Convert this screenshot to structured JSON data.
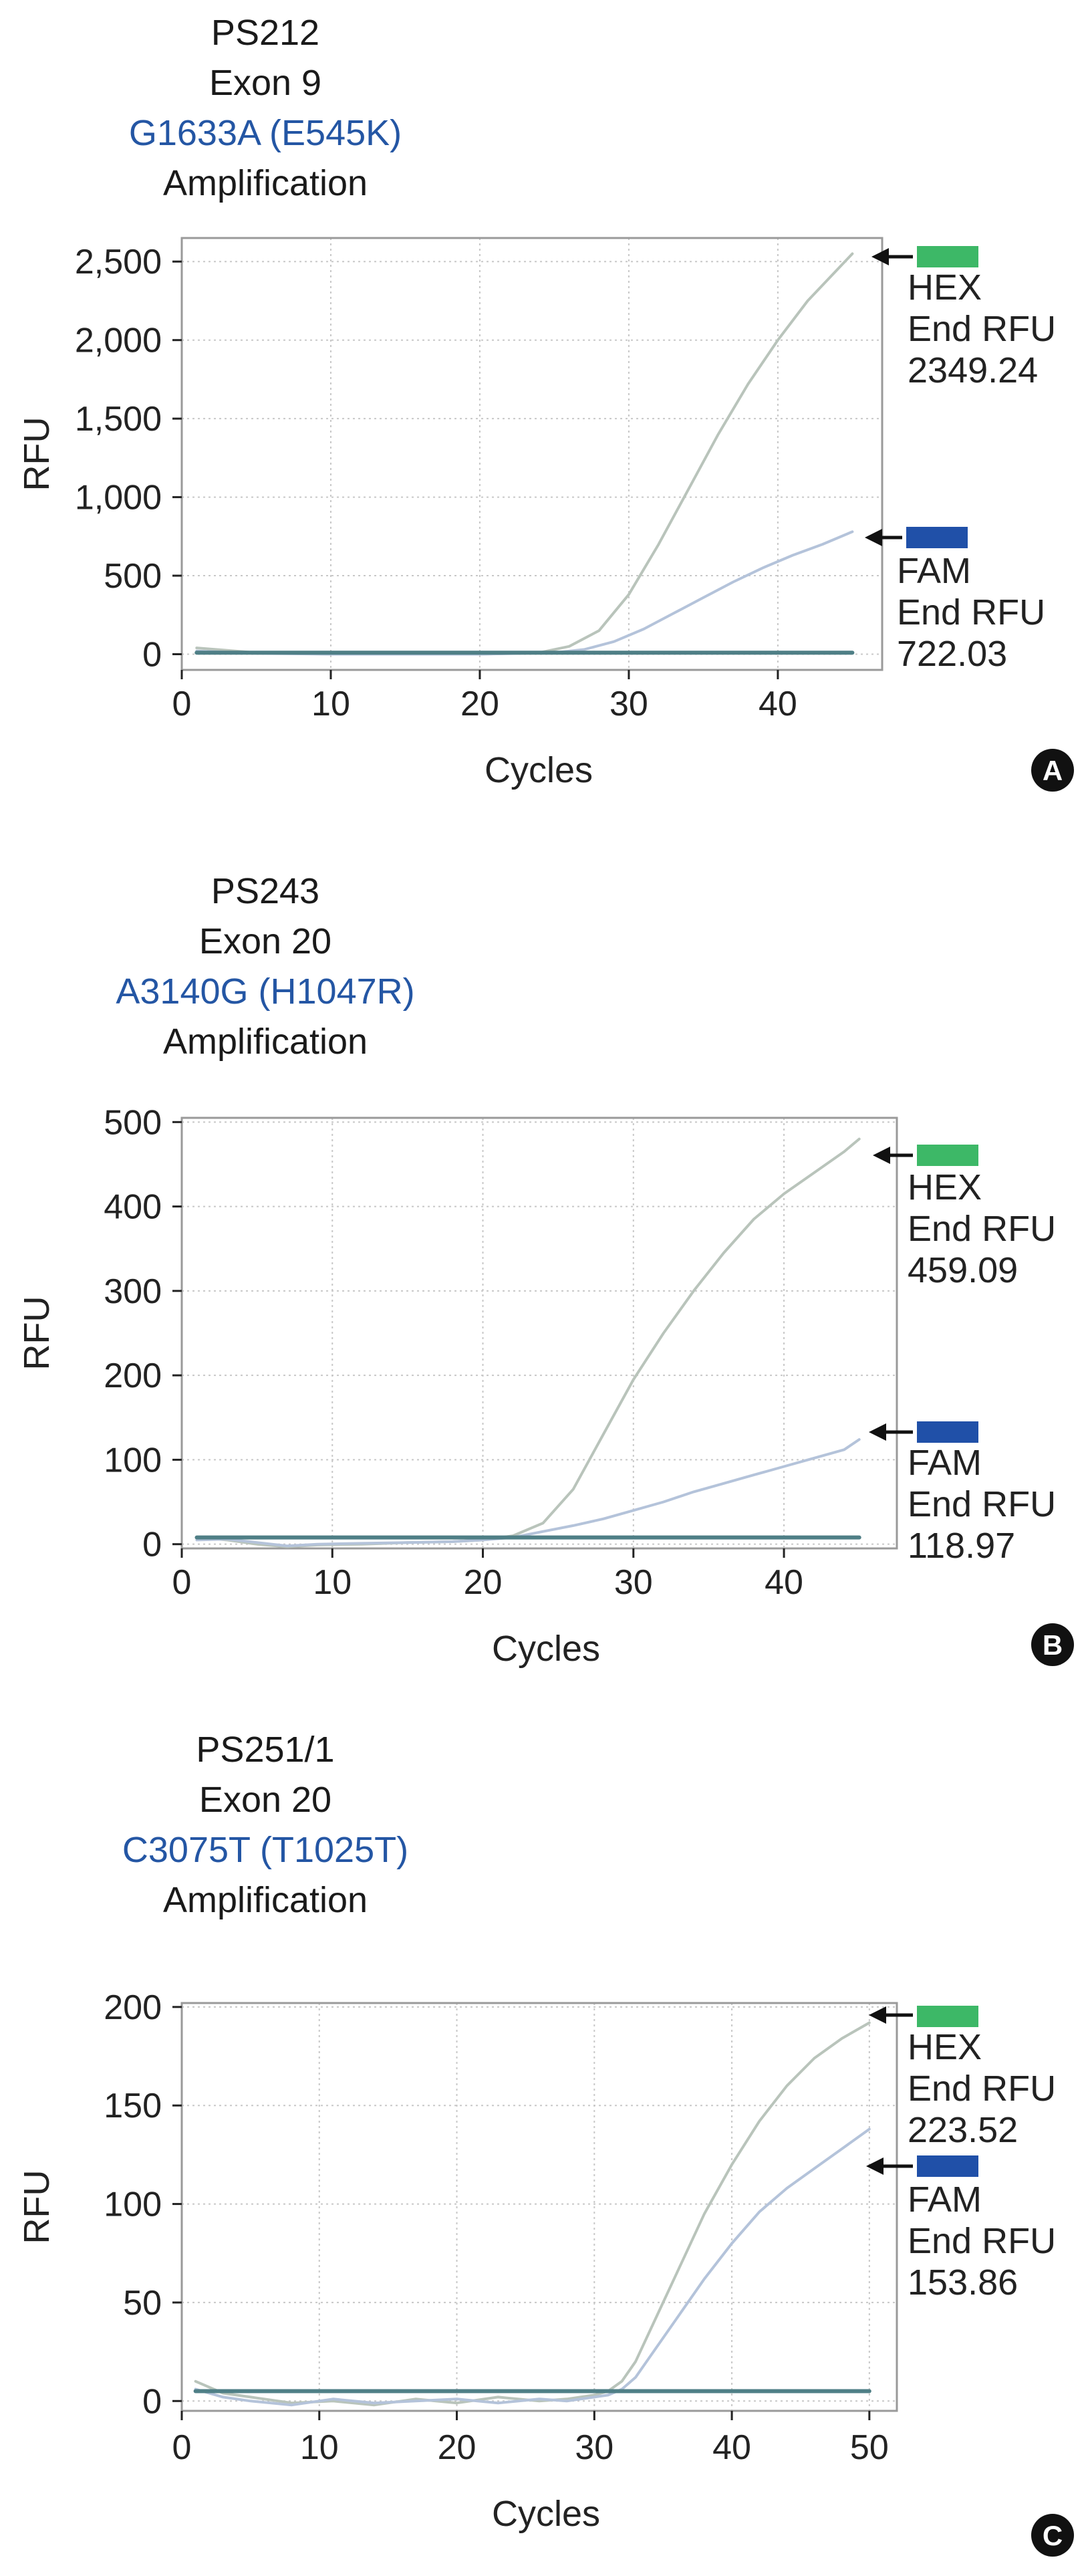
{
  "figure": {
    "colors": {
      "hex": "#3db867",
      "fam": "#2050a8",
      "axis": "#222222",
      "grid": "#c8c8c8",
      "curve_hex": "#b9c4bb",
      "curve_fam": "#b4c3da",
      "baseline": "#4f7f86",
      "arrow": "#111111",
      "mutation_text": "#2456a4"
    }
  },
  "chart_data": [
    {
      "type": "line",
      "panel_label": "A",
      "title_lines": [
        "PS212",
        "Exon 9",
        "G1633A (E545K)",
        "Amplification"
      ],
      "xlabel": "Cycles",
      "ylabel": "RFU",
      "xlim": [
        0,
        47
      ],
      "ylim": [
        -100,
        2650
      ],
      "xticks": [
        0,
        10,
        20,
        30,
        40
      ],
      "xtick_labels": [
        "0",
        "10",
        "20",
        "30",
        "40"
      ],
      "yticks": [
        0,
        500,
        1000,
        1500,
        2000,
        2500
      ],
      "ytick_labels": [
        "0",
        "500",
        "1,000",
        "1,500",
        "2,000",
        "2,500"
      ],
      "grid": true,
      "series": [
        {
          "name": "HEX",
          "end_rfu_label": "End RFU",
          "end_rfu": "2349.24",
          "x": [
            1,
            5,
            10,
            15,
            20,
            24,
            26,
            28,
            30,
            32,
            34,
            36,
            38,
            40,
            42,
            44,
            45
          ],
          "y": [
            40,
            10,
            0,
            0,
            0,
            10,
            50,
            150,
            380,
            700,
            1050,
            1400,
            1720,
            2000,
            2250,
            2450,
            2550
          ]
        },
        {
          "name": "FAM",
          "end_rfu_label": "End RFU",
          "end_rfu": "722.03",
          "x": [
            1,
            5,
            10,
            15,
            20,
            25,
            27,
            29,
            31,
            33,
            35,
            37,
            39,
            41,
            43,
            45
          ],
          "y": [
            20,
            5,
            0,
            0,
            0,
            10,
            30,
            80,
            160,
            260,
            360,
            460,
            550,
            630,
            700,
            780
          ]
        },
        {
          "name": "",
          "x": [
            1,
            45
          ],
          "y": [
            10,
            10
          ]
        }
      ]
    },
    {
      "type": "line",
      "panel_label": "B",
      "title_lines": [
        "PS243",
        "Exon 20",
        "A3140G (H1047R)",
        "Amplification"
      ],
      "xlabel": "Cycles",
      "ylabel": "RFU",
      "xlim": [
        0,
        47.5
      ],
      "ylim": [
        -5,
        505
      ],
      "xticks": [
        0,
        10,
        20,
        30,
        40
      ],
      "xtick_labels": [
        "0",
        "10",
        "20",
        "30",
        "40"
      ],
      "yticks": [
        0,
        100,
        200,
        300,
        400,
        500
      ],
      "ytick_labels": [
        "0",
        "100",
        "200",
        "300",
        "400",
        "500"
      ],
      "grid": true,
      "series": [
        {
          "name": "HEX",
          "end_rfu_label": "End RFU",
          "end_rfu": "459.09",
          "x": [
            1,
            3,
            5,
            7,
            9,
            12,
            15,
            18,
            20,
            22,
            24,
            26,
            28,
            30,
            32,
            34,
            36,
            38,
            40,
            42,
            44,
            45
          ],
          "y": [
            8,
            5,
            0,
            -3,
            -1,
            0,
            2,
            3,
            5,
            10,
            25,
            65,
            130,
            195,
            250,
            300,
            345,
            385,
            415,
            440,
            465,
            480
          ]
        },
        {
          "name": "FAM",
          "end_rfu_label": "End RFU",
          "end_rfu": "118.97",
          "x": [
            1,
            3,
            5,
            7,
            9,
            12,
            15,
            18,
            20,
            22,
            24,
            26,
            28,
            30,
            32,
            34,
            36,
            38,
            40,
            42,
            44,
            45
          ],
          "y": [
            5,
            6,
            2,
            -2,
            0,
            1,
            2,
            3,
            5,
            8,
            15,
            22,
            30,
            40,
            50,
            62,
            72,
            82,
            92,
            102,
            112,
            124
          ]
        },
        {
          "name": "",
          "x": [
            1,
            45
          ],
          "y": [
            8,
            8
          ]
        }
      ]
    },
    {
      "type": "line",
      "panel_label": "C",
      "title_lines": [
        "PS251/1",
        "Exon 20",
        "C3075T (T1025T)",
        "Amplification"
      ],
      "xlabel": "Cycles",
      "ylabel": "RFU",
      "xlim": [
        0,
        52
      ],
      "ylim": [
        -5,
        202
      ],
      "xticks": [
        0,
        10,
        20,
        30,
        40,
        50
      ],
      "xtick_labels": [
        "0",
        "10",
        "20",
        "30",
        "40",
        "50"
      ],
      "yticks": [
        0,
        50,
        100,
        150,
        200
      ],
      "ytick_labels": [
        "0",
        "50",
        "100",
        "150",
        "200"
      ],
      "grid": true,
      "series": [
        {
          "name": "HEX",
          "end_rfu_label": "End RFU",
          "end_rfu": "223.52",
          "x": [
            1,
            3,
            5,
            8,
            11,
            14,
            17,
            20,
            23,
            26,
            28,
            30,
            31,
            32,
            33,
            34,
            36,
            38,
            40,
            42,
            44,
            46,
            48,
            50
          ],
          "y": [
            10,
            4,
            2,
            -1,
            0,
            -2,
            1,
            -1,
            2,
            0,
            1,
            3,
            5,
            10,
            20,
            35,
            65,
            95,
            120,
            142,
            160,
            174,
            184,
            192
          ]
        },
        {
          "name": "FAM",
          "end_rfu_label": "End RFU",
          "end_rfu": "153.86",
          "x": [
            1,
            3,
            5,
            8,
            11,
            14,
            17,
            20,
            23,
            26,
            28,
            30,
            31,
            32,
            33,
            34,
            36,
            38,
            40,
            42,
            44,
            46,
            48,
            50
          ],
          "y": [
            6,
            2,
            0,
            -2,
            1,
            -1,
            0,
            1,
            -1,
            1,
            0,
            2,
            3,
            6,
            12,
            22,
            42,
            62,
            80,
            96,
            108,
            118,
            128,
            138
          ]
        },
        {
          "name": "",
          "x": [
            1,
            50
          ],
          "y": [
            5,
            5
          ]
        }
      ]
    }
  ]
}
